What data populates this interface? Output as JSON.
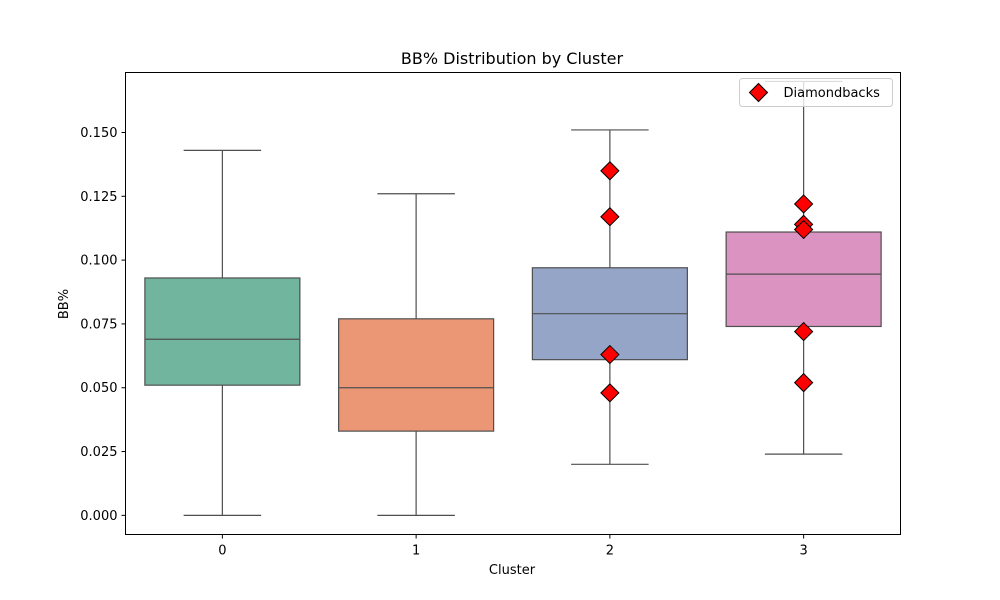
{
  "chart_data": {
    "type": "box",
    "title": "BB% Distribution by Cluster",
    "xlabel": "Cluster",
    "ylabel": "BB%",
    "ylim": [
      -0.0075,
      0.1735
    ],
    "yticks": [
      0.0,
      0.025,
      0.05,
      0.075,
      0.1,
      0.125,
      0.15
    ],
    "ytick_labels": [
      "0.000",
      "0.025",
      "0.050",
      "0.075",
      "0.100",
      "0.125",
      "0.150"
    ],
    "categories": [
      "0",
      "1",
      "2",
      "3"
    ],
    "boxes": [
      {
        "category": "0",
        "whisker_low": 0.0,
        "q1": 0.051,
        "median": 0.069,
        "q3": 0.093,
        "whisker_high": 0.143,
        "color": "#72b59f"
      },
      {
        "category": "1",
        "whisker_low": 0.0,
        "q1": 0.033,
        "median": 0.05,
        "q3": 0.077,
        "whisker_high": 0.126,
        "color": "#eb9775"
      },
      {
        "category": "2",
        "whisker_low": 0.02,
        "q1": 0.061,
        "median": 0.079,
        "q3": 0.097,
        "whisker_high": 0.151,
        "color": "#95a5c7"
      },
      {
        "category": "3",
        "whisker_low": 0.024,
        "q1": 0.074,
        "median": 0.0945,
        "q3": 0.111,
        "whisker_high": 0.17,
        "color": "#db93c1"
      }
    ],
    "series": [
      {
        "name": "Diamondbacks",
        "marker": "diamond",
        "color": "#ff0000",
        "points": [
          {
            "x": "2",
            "y": 0.135
          },
          {
            "x": "2",
            "y": 0.117
          },
          {
            "x": "2",
            "y": 0.048
          },
          {
            "x": "2",
            "y": 0.063
          },
          {
            "x": "3",
            "y": 0.122
          },
          {
            "x": "3",
            "y": 0.114
          },
          {
            "x": "3",
            "y": 0.112
          },
          {
            "x": "3",
            "y": 0.072
          },
          {
            "x": "3",
            "y": 0.052
          }
        ]
      }
    ],
    "legend_position": "top-right",
    "grid": false
  }
}
